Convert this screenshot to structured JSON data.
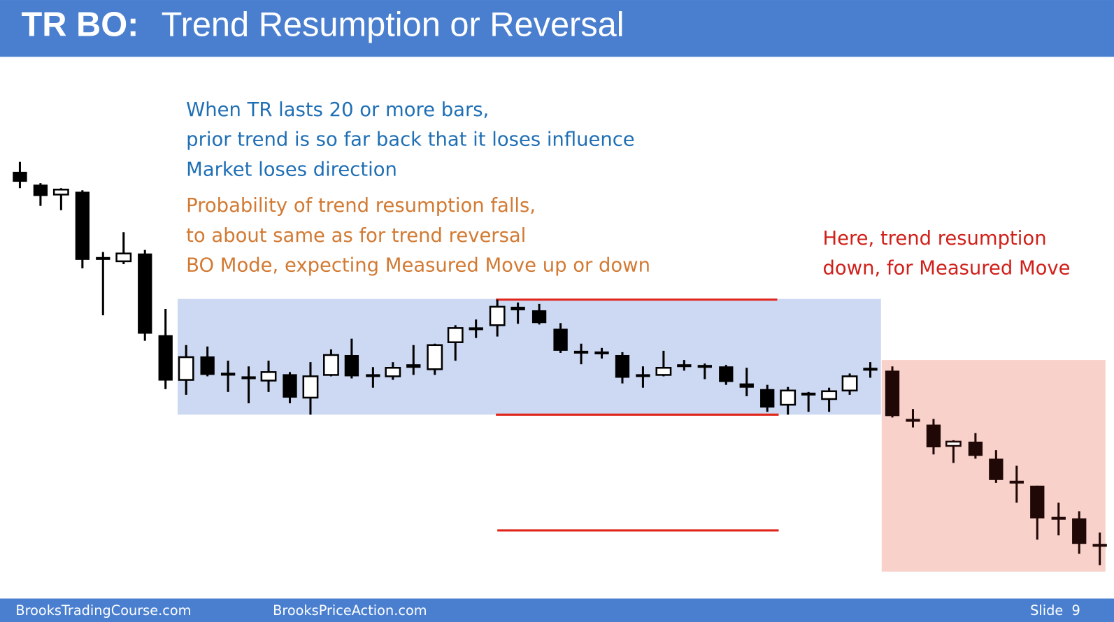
{
  "header": {
    "label": "TR BO:",
    "title": "Trend Resumption or Reversal"
  },
  "notes": {
    "blue": [
      "When TR lasts 20 or more bars,",
      "prior trend is so far back that it loses influence",
      "Market loses direction"
    ],
    "orange": [
      "Probability of trend resumption falls,",
      "to about same as for trend reversal",
      "BO Mode, expecting Measured Move up or down"
    ]
  },
  "callout": [
    "Here, trend resumption",
    "down, for Measured Move"
  ],
  "footer": {
    "left": "BrooksTradingCourse.com",
    "center": "BrooksPriceAction.com",
    "slide": "Slide  9"
  }
}
